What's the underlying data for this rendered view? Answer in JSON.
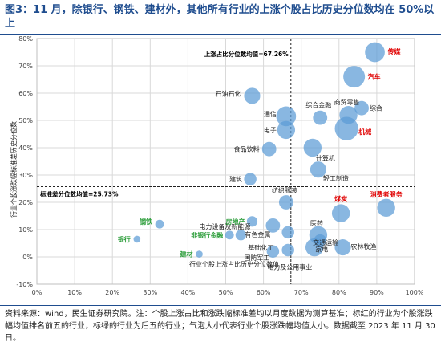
{
  "header": {
    "title": "图3：11 月，除银行、钢铁、建材外，其他所有行业的上涨个股占比历史分位数均在 50%以上"
  },
  "footer": {
    "source_note": "资料来源：wind，民生证券研究院。注：个股上涨占比和涨跌幅标准差均以月度数据为测算基准；标红的行业为个股涨跌幅均值排名前五的行业，标绿的行业为后五的行业；气泡大小代表行业个股涨跌幅均值大小。数据截至 2023 年 11 月 30 日。"
  },
  "colors": {
    "bubble": "#5b9bd5",
    "red": "#e00000",
    "green": "#2e9e3c",
    "title": "#1f4d8f"
  },
  "chart_data": {
    "type": "scatter",
    "xlabel": "行业个股上涨占比历史分位数值",
    "ylabel": "行业个股涨跌幅标准差历史分位数",
    "xlim": [
      0,
      100
    ],
    "ylim": [
      -10,
      80
    ],
    "x_ticks": [
      "0%",
      "10%",
      "20%",
      "30%",
      "40%",
      "50%",
      "60%",
      "70%",
      "80%",
      "90%",
      "100%"
    ],
    "y_ticks": [
      "-10%",
      "0%",
      "10%",
      "20%",
      "30%",
      "40%",
      "50%",
      "60%",
      "70%",
      "80%"
    ],
    "grid": true,
    "vline": {
      "x": 67.26,
      "label": "上涨占比分位数均值=67.26%"
    },
    "hline": {
      "y": 25.73,
      "label": "标准差分位数均值=25.73%"
    },
    "points": [
      {
        "name": "传媒",
        "x": 89.5,
        "y": 75,
        "size": 9,
        "color": "red"
      },
      {
        "name": "汽车",
        "x": 84,
        "y": 66,
        "size": 10,
        "color": "red"
      },
      {
        "name": "石油石化",
        "x": 57,
        "y": 59,
        "size": 7,
        "color": ""
      },
      {
        "name": "商贸零售",
        "x": 82.5,
        "y": 52,
        "size": 8,
        "color": ""
      },
      {
        "name": "综合",
        "x": 86,
        "y": 54.5,
        "size": 6,
        "color": ""
      },
      {
        "name": "综合金融",
        "x": 75,
        "y": 51,
        "size": 6,
        "color": ""
      },
      {
        "name": "通信",
        "x": 66,
        "y": 51.5,
        "size": 9,
        "color": ""
      },
      {
        "name": "机械",
        "x": 82,
        "y": 47,
        "size": 11,
        "color": "red"
      },
      {
        "name": "电子",
        "x": 66,
        "y": 46.5,
        "size": 8,
        "color": ""
      },
      {
        "name": "食品饮料",
        "x": 61.5,
        "y": 39.5,
        "size": 6,
        "color": ""
      },
      {
        "name": "计算机",
        "x": 73,
        "y": 40,
        "size": 8,
        "color": ""
      },
      {
        "name": "轻工制造",
        "x": 74.5,
        "y": 32,
        "size": 7,
        "color": ""
      },
      {
        "name": "建筑",
        "x": 56.5,
        "y": 28.5,
        "size": 5,
        "color": ""
      },
      {
        "name": "纺织服装",
        "x": 66,
        "y": 20,
        "size": 6,
        "color": ""
      },
      {
        "name": "煤炭",
        "x": 80.5,
        "y": 16,
        "size": 8,
        "color": "red"
      },
      {
        "name": "消费者服务",
        "x": 92.5,
        "y": 18,
        "size": 8,
        "color": "red"
      },
      {
        "name": "钢铁",
        "x": 32.5,
        "y": 12,
        "size": 3,
        "color": "green"
      },
      {
        "name": "电力设备及新能源",
        "x": 54,
        "y": 8,
        "size": 4,
        "color": ""
      },
      {
        "name": "房地产",
        "x": 57,
        "y": 13,
        "size": 4,
        "color": "green"
      },
      {
        "name": "医药",
        "x": 74.5,
        "y": 8,
        "size": 8,
        "color": ""
      },
      {
        "name": "交通运输",
        "x": 73.5,
        "y": 3.5,
        "size": 8,
        "color": ""
      },
      {
        "name": "农林牧渔",
        "x": 81,
        "y": 3.5,
        "size": 7,
        "color": ""
      },
      {
        "name": "银行",
        "x": 26.5,
        "y": 6.5,
        "size": 2,
        "color": "green"
      },
      {
        "name": "非银行金融",
        "x": 51,
        "y": 8,
        "size": 3,
        "color": "green"
      },
      {
        "name": "有色金属",
        "x": 62.5,
        "y": 11.5,
        "size": 6,
        "color": ""
      },
      {
        "name": "国防军工",
        "x": 62.5,
        "y": 2,
        "size": 5,
        "color": ""
      },
      {
        "name": "基础化工",
        "x": 66.5,
        "y": 9,
        "size": 5,
        "color": ""
      },
      {
        "name": "建材",
        "x": 43,
        "y": 1,
        "size": 2,
        "color": "green"
      },
      {
        "name": "电力及公用事业",
        "x": 66.5,
        "y": 2.5,
        "size": 5,
        "color": ""
      },
      {
        "name": "家电",
        "x": 75,
        "y": 6,
        "size": 5,
        "color": ""
      }
    ]
  }
}
